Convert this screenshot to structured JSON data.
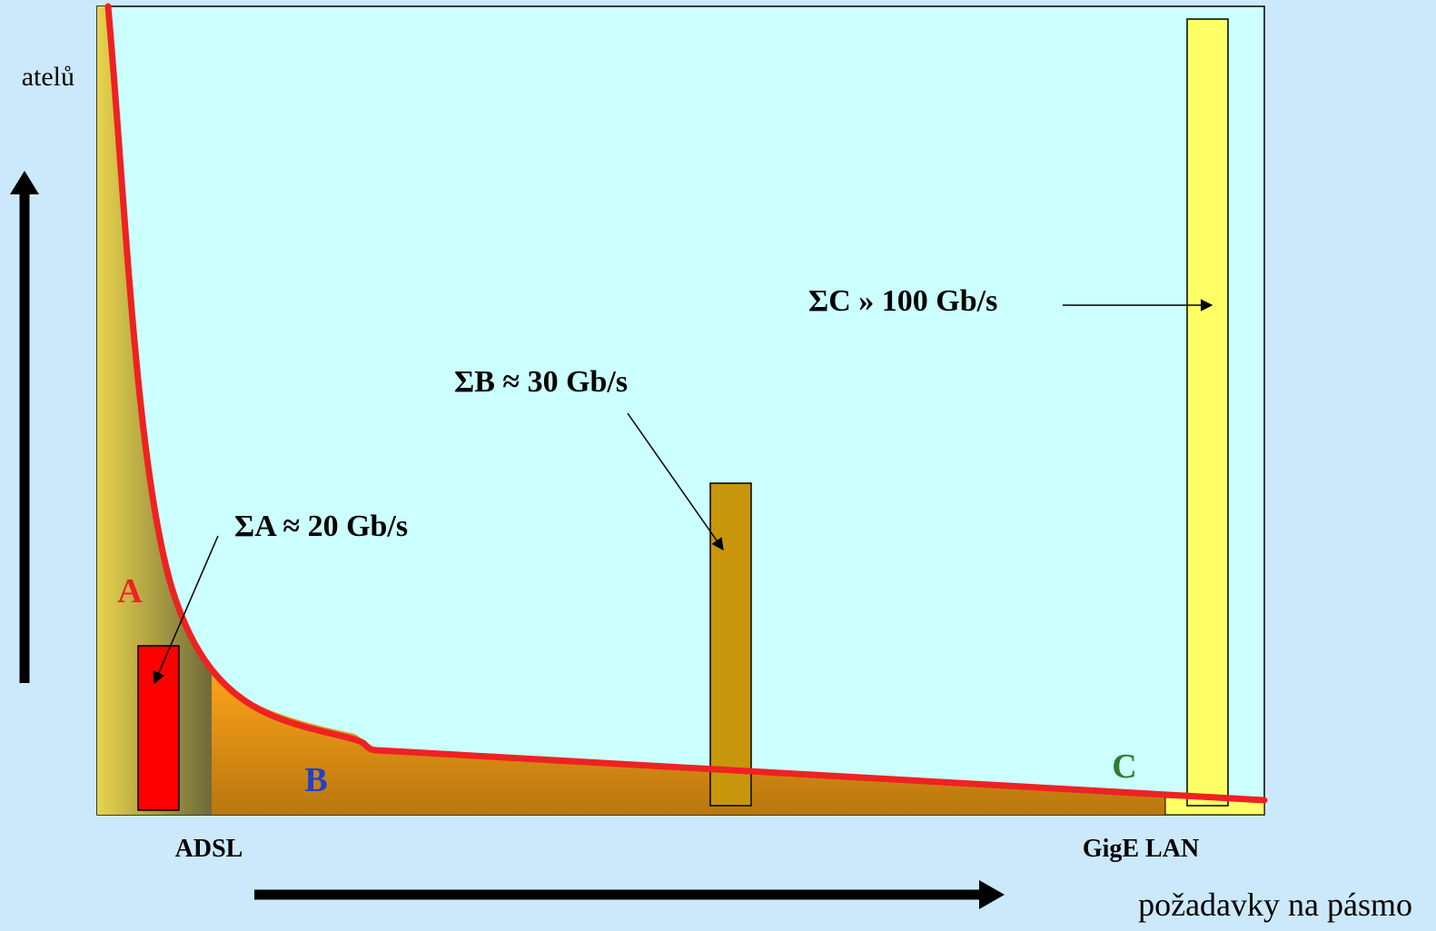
{
  "y_axis": {
    "label": "atelů"
  },
  "x_axis": {
    "label": "požadavky na pásmo",
    "tick_left": "ADSL",
    "tick_right": "GigE LAN"
  },
  "regions": {
    "a": "A",
    "b": "B",
    "c": "C"
  },
  "callouts": {
    "sum_a": "ΣA ≈ 20 Gb/s",
    "sum_b": "ΣB ≈ 30 Gb/s",
    "sum_c": "ΣC » 100 Gb/s"
  },
  "colors": {
    "background": "#CCE9FB",
    "plot_area": "#CCFFFF",
    "curve": "#EE2222",
    "region_a_fill": "#E6D24A",
    "region_b_fill": "#F39C12",
    "bar_a": "#FF0000",
    "bar_b": "#C8960A",
    "bar_c": "#FFFF66",
    "label_a": "#EE2222",
    "label_b": "#1F3FD0",
    "label_c": "#2E7D32"
  }
}
